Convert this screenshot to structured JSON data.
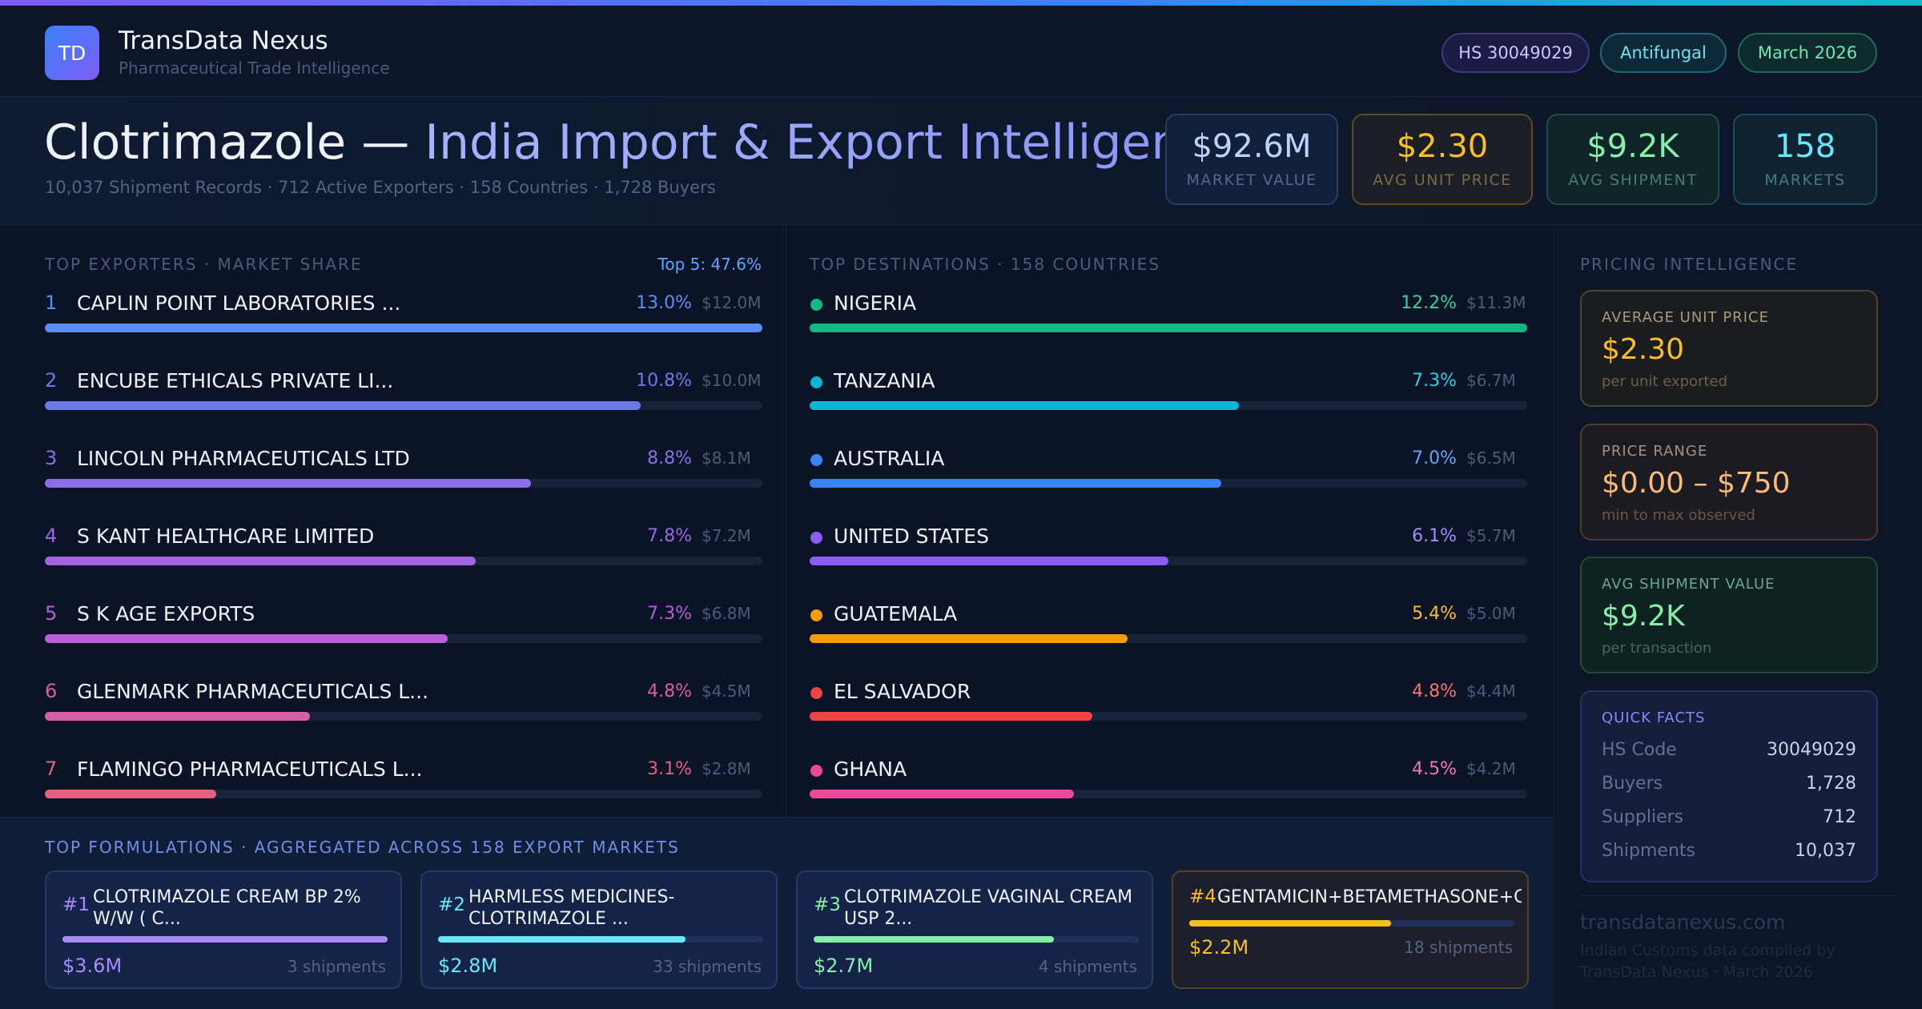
{
  "brand": {
    "initials": "TD",
    "name": "TransData Nexus",
    "subtitle": "Pharmaceutical Trade Intelligence"
  },
  "pills": {
    "hs": "HS 30049029",
    "category": "Antifungal",
    "date": "March 2026"
  },
  "hero": {
    "title_product": "Clotrimazole — ",
    "title_rest": "India Import & Export Intelligence",
    "subtitle": "10,037 Shipment Records · 712 Active Exporters · 158 Countries · 1,728 Buyers"
  },
  "kpis": [
    {
      "value": "$92.6M",
      "label": "MARKET VALUE"
    },
    {
      "value": "$2.30",
      "label": "AVG UNIT PRICE"
    },
    {
      "value": "$9.2K",
      "label": "AVG SHIPMENT"
    },
    {
      "value": "158",
      "label": "MARKETS"
    }
  ],
  "exporters": {
    "title": "TOP EXPORTERS · MARKET SHARE",
    "top5": "Top 5: 47.6%",
    "rows": [
      {
        "rank": "1",
        "name": "CAPLIN POINT LABORATORIES ...",
        "pct": "13.0%",
        "amount": "$12.0M",
        "share": 13.0,
        "color": "#5b8def"
      },
      {
        "rank": "2",
        "name": "ENCUBE ETHICALS PRIVATE LI...",
        "pct": "10.8%",
        "amount": "$10.0M",
        "share": 10.8,
        "color": "#6c7ae8"
      },
      {
        "rank": "3",
        "name": "LINCOLN PHARMACEUTICALS LTD",
        "pct": "8.8%",
        "amount": "$8.1M",
        "share": 8.8,
        "color": "#8b6ee6"
      },
      {
        "rank": "4",
        "name": "S KANT HEALTHCARE LIMITED",
        "pct": "7.8%",
        "amount": "$7.2M",
        "share": 7.8,
        "color": "#a064e0"
      },
      {
        "rank": "5",
        "name": "S K AGE EXPORTS",
        "pct": "7.3%",
        "amount": "$6.8M",
        "share": 7.3,
        "color": "#b95fd8"
      },
      {
        "rank": "6",
        "name": "GLENMARK PHARMACEUTICALS L...",
        "pct": "4.8%",
        "amount": "$4.5M",
        "share": 4.8,
        "color": "#d65fa6"
      },
      {
        "rank": "7",
        "name": "FLAMINGO PHARMACEUTICALS L...",
        "pct": "3.1%",
        "amount": "$2.8M",
        "share": 3.1,
        "color": "#e0627f"
      }
    ]
  },
  "destinations": {
    "title": "TOP DESTINATIONS · 158 COUNTRIES",
    "rows": [
      {
        "name": "NIGERIA",
        "pct": "12.2%",
        "amount": "$11.3M",
        "share": 12.2,
        "color": "#10b981",
        "pct_color": "#34d399"
      },
      {
        "name": "TANZANIA",
        "pct": "7.3%",
        "amount": "$6.7M",
        "share": 7.3,
        "color": "#06b6d4",
        "pct_color": "#22d3ee"
      },
      {
        "name": "AUSTRALIA",
        "pct": "7.0%",
        "amount": "$6.5M",
        "share": 7.0,
        "color": "#3b82f6",
        "pct_color": "#60a5fa"
      },
      {
        "name": "UNITED STATES",
        "pct": "6.1%",
        "amount": "$5.7M",
        "share": 6.1,
        "color": "#8b5cf6",
        "pct_color": "#a78bfa"
      },
      {
        "name": "GUATEMALA",
        "pct": "5.4%",
        "amount": "$5.0M",
        "share": 5.4,
        "color": "#f59e0b",
        "pct_color": "#fbbf24"
      },
      {
        "name": "EL SALVADOR",
        "pct": "4.8%",
        "amount": "$4.4M",
        "share": 4.8,
        "color": "#ef4444",
        "pct_color": "#f87171"
      },
      {
        "name": "GHANA",
        "pct": "4.5%",
        "amount": "$4.2M",
        "share": 4.5,
        "color": "#ec4899",
        "pct_color": "#f472b6"
      }
    ]
  },
  "pricing": {
    "title": "PRICING INTELLIGENCE",
    "avg_price": {
      "label": "AVERAGE UNIT PRICE",
      "value": "$2.30",
      "sub": "per unit exported"
    },
    "range": {
      "label": "PRICE RANGE",
      "value": "$0.00 – $750",
      "sub": "min to max observed"
    },
    "avg_shipment": {
      "label": "AVG SHIPMENT VALUE",
      "value": "$9.2K",
      "sub": "per transaction"
    },
    "quick_facts": {
      "label": "QUICK FACTS",
      "items": [
        {
          "key": "HS Code",
          "value": "30049029"
        },
        {
          "key": "Buyers",
          "value": "1,728"
        },
        {
          "key": "Suppliers",
          "value": "712"
        },
        {
          "key": "Shipments",
          "value": "10,037"
        }
      ]
    },
    "url": "transdatanexus.com",
    "note": "Indian Customs data compiled by TransData Nexus · March 2026"
  },
  "formulations": {
    "title": "TOP FORMULATIONS · AGGREGATED ACROSS 158 EXPORT MARKETS",
    "items": [
      {
        "num": "#1",
        "name": "CLOTRIMAZOLE CREAM BP 2% W/W ( C...",
        "value": "$3.6M",
        "shipments": "3 shipments",
        "share": 1.0,
        "color": "#a78bfa"
      },
      {
        "num": "#2",
        "name": "HARMLESS MEDICINES- CLOTRIMAZOLE ...",
        "value": "$2.8M",
        "shipments": "33 shipments",
        "share": 0.76,
        "color": "#67e8f9"
      },
      {
        "num": "#3",
        "name": "CLOTRIMAZOLE VAGINAL CREAM USP 2...",
        "value": "$2.7M",
        "shipments": "4 shipments",
        "share": 0.74,
        "color": "#86efac"
      },
      {
        "num": "#4",
        "name": "GENTAMICIN+BETAMETHASONE+CLOTRIM...",
        "value": "$2.2M",
        "shipments": "18 shipments",
        "share": 0.62,
        "color": "#fbbf24"
      }
    ]
  }
}
